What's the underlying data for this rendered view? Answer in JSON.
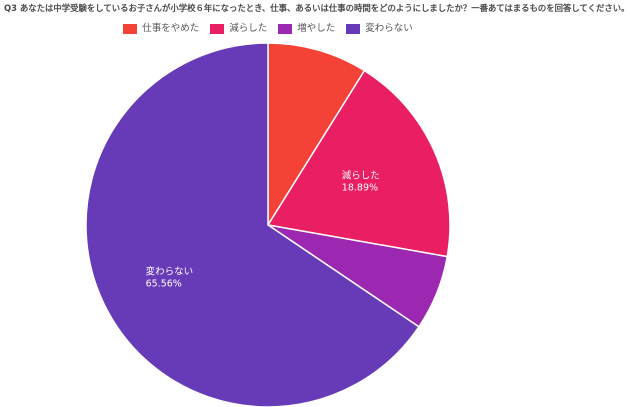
{
  "chart_data": {
    "type": "pie",
    "title": "Q3 あなたは中学受験をしているお子さんが小学校６年になったとき、仕事、あるいは仕事の時間をどのようにしましたか？一番あてはまるものを回答してください。",
    "categories": [
      "仕事をやめた",
      "減らした",
      "増やした",
      "変わらない"
    ],
    "values": [
      8.89,
      18.89,
      6.67,
      65.56
    ],
    "colors": [
      "#f44336",
      "#e91e63",
      "#9c27b0",
      "#673ab7"
    ],
    "data_labels": [
      "",
      "18.89%",
      "",
      "65.56%"
    ],
    "legend_position": "top"
  }
}
